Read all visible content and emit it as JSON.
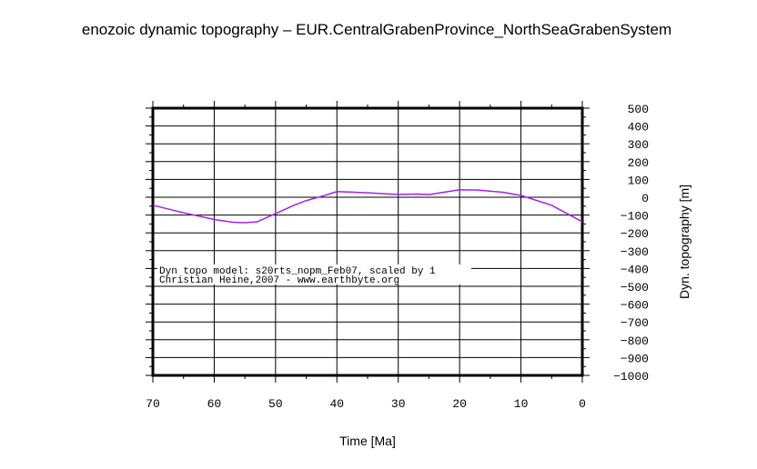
{
  "chart_data": {
    "type": "line",
    "title": "enozoic dynamic topography – EUR.CentralGrabenProvince_NorthSeaGrabenSystem",
    "xlabel": "Time [Ma]",
    "ylabel": "Dyn. topography [m]",
    "xlim": [
      70,
      0
    ],
    "ylim": [
      -1000,
      500
    ],
    "x_reversed": true,
    "xticks": [
      70,
      60,
      50,
      40,
      30,
      20,
      10,
      0
    ],
    "yticks": [
      500,
      400,
      300,
      200,
      100,
      0,
      -100,
      -200,
      -300,
      -400,
      -500,
      -600,
      -700,
      -800,
      -900,
      -1000
    ],
    "grid": true,
    "line_color": "#a020f0",
    "series": [
      {
        "x": [
          70,
          65,
          60,
          57,
          55,
          53,
          50,
          47,
          45,
          42,
          40,
          35,
          30,
          27,
          25,
          20,
          17,
          13,
          10,
          5,
          0
        ],
        "y": [
          -45,
          -87,
          -125,
          -140,
          -143,
          -138,
          -92,
          -45,
          -19,
          10,
          32,
          25,
          15,
          18,
          15,
          42,
          40,
          28,
          10,
          -45,
          -138
        ]
      }
    ],
    "annotations": [
      "Dyn topo model: s20rts_nopm_Feb07, scaled by 1",
      "Christian Heine,2007 - www.earthbyte.org"
    ]
  }
}
